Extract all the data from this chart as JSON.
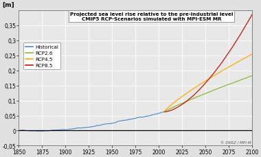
{
  "title_line1": "Projected sea level rise relative to the pre-industrial level",
  "title_line2": "CMIP5 RCP-Scenarios simulated with MPI-ESM MR",
  "ylabel": "[m]",
  "xlim": [
    1850,
    2100
  ],
  "ylim": [
    -0.05,
    0.4
  ],
  "yticks": [
    -0.05,
    0,
    0.05,
    0.1,
    0.15,
    0.2,
    0.25,
    0.3,
    0.35
  ],
  "ytick_labels": [
    "-0,05",
    "0",
    "0,05",
    "0,1",
    "0,15",
    "0,2",
    "0,25",
    "0,3",
    "0,35"
  ],
  "xticks": [
    1850,
    1875,
    1900,
    1925,
    1950,
    1975,
    2000,
    2025,
    2050,
    2075,
    2100
  ],
  "colors": {
    "historical": "#4488cc",
    "rcp26": "#88bb33",
    "rcp45": "#ffaa00",
    "rcp85": "#cc1100"
  },
  "bg_color": "#e0e0e0",
  "plot_bg": "#e8e8e8",
  "watermark": "© DKRZ / MPI-M",
  "legend_labels": [
    "Historical",
    "RCP2.6",
    "RCP4.5",
    "RCP8.5"
  ]
}
